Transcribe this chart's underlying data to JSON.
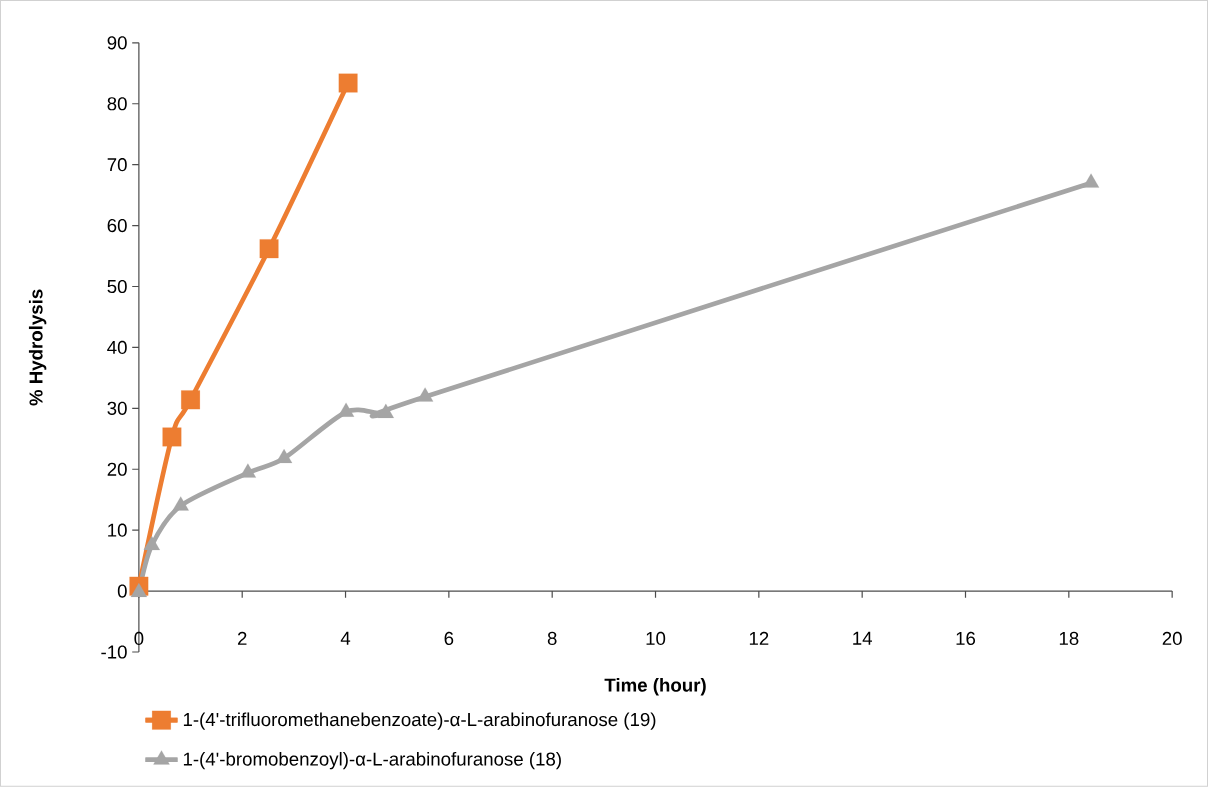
{
  "chart_data": {
    "type": "line",
    "xlabel": "Time (hour)",
    "ylabel": "% Hydrolysis",
    "xlim": [
      0,
      20
    ],
    "ylim": [
      -10,
      90
    ],
    "xticks": [
      0,
      2,
      4,
      6,
      8,
      10,
      12,
      14,
      16,
      18,
      20
    ],
    "yticks": [
      -10,
      0,
      10,
      20,
      30,
      40,
      50,
      60,
      70,
      80,
      90
    ],
    "legend": "bottom",
    "series": [
      {
        "name": "1-(4'-trifluoromethanebenzoate)-α-L-arabinofuranose (19)",
        "color": "#ed7d31",
        "marker": "square",
        "x": [
          0,
          0.64,
          1.0,
          2.52,
          4.05
        ],
        "values": [
          0.8,
          25.3,
          31.4,
          56.2,
          83.4
        ]
      },
      {
        "name": "1-(4'-bromobenzoyl)-α-L-arabinofuranose (18)",
        "color": "#a5a5a5",
        "marker": "triangle",
        "x": [
          0,
          0.25,
          0.81,
          2.11,
          2.81,
          4.01,
          4.78,
          5.54,
          18.43
        ],
        "values": [
          -0.2,
          7.5,
          14,
          19.4,
          21.8,
          29.4,
          29.2,
          31.9,
          67
        ]
      }
    ]
  }
}
